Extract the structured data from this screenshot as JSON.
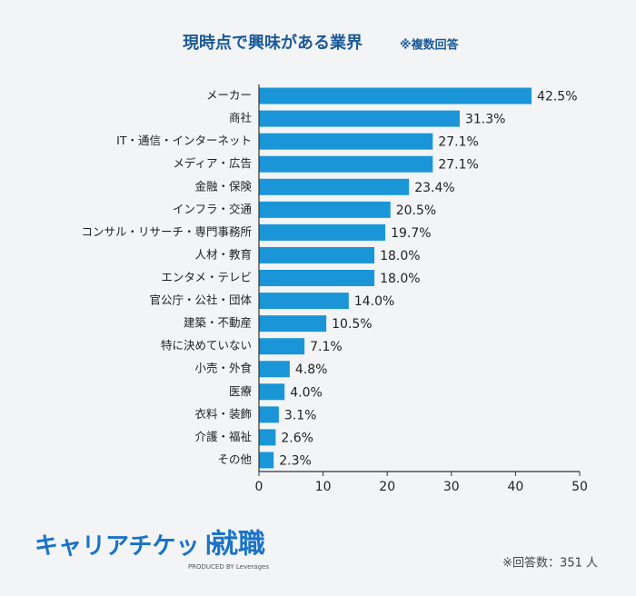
{
  "chart_data": {
    "type": "bar",
    "orientation": "horizontal",
    "title": "現時点で興味がある業界",
    "subtitle": "※複数回答",
    "categories": [
      "メーカー",
      "商社",
      "IT・通信・インターネット",
      "メディア・広告",
      "金融・保険",
      "インフラ・交通",
      "コンサル・リサーチ・専門事務所",
      "人材・教育",
      "エンタメ・テレビ",
      "官公庁・公社・団体",
      "建築・不動産",
      "特に決めていない",
      "小売・外食",
      "医療",
      "衣料・装飾",
      "介護・福祉",
      "その他"
    ],
    "values": [
      42.5,
      31.3,
      27.1,
      27.1,
      23.4,
      20.5,
      19.7,
      18.0,
      18.0,
      14.0,
      10.5,
      7.1,
      4.8,
      4.0,
      3.1,
      2.6,
      2.3
    ],
    "value_labels": [
      "42.5%",
      "31.3%",
      "27.1%",
      "27.1%",
      "23.4%",
      "20.5%",
      "19.7%",
      "18.0%",
      "18.0%",
      "14.0%",
      "10.5%",
      "7.1%",
      "4.8%",
      "4.0%",
      "3.1%",
      "2.6%",
      "2.3%"
    ],
    "color": "#1a96d8",
    "xlim": [
      0,
      50
    ],
    "xticks": [
      0,
      10,
      20,
      30,
      40,
      50
    ],
    "footnote": "※回答数：351 人"
  },
  "brand": {
    "name": "キャリアチケット",
    "suffix": "就職",
    "tagline": "PRODUCED BY Leverages"
  }
}
